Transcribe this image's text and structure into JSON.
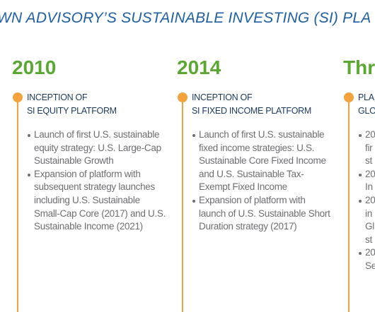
{
  "header": {
    "title": "WN ADVISORY’S SUSTAINABLE INVESTING (SI) PLA"
  },
  "columns": [
    {
      "year": "2010",
      "heading": [
        "INCEPTION OF",
        "SI EQUITY PLATFORM"
      ],
      "bullets": [
        [
          "Launch of first U.S. sustainable",
          "equity strategy: U.S. Large-Cap",
          "Sustainable Growth"
        ],
        [
          "Expansion of platform with",
          "subsequent strategy launches",
          "including U.S. Sustainable",
          "Small-Cap Core (2017) and U.S.",
          "Sustainable Income (2021)"
        ]
      ]
    },
    {
      "year": "2014",
      "heading": [
        "INCEPTION OF",
        "SI FIXED INCOME PLATFORM"
      ],
      "bullets": [
        [
          "Launch of first U.S. sustainable",
          "fixed income strategies: U.S.",
          "Sustainable Core Fixed Income",
          "and U.S. Sustainable Tax-",
          "Exempt Fixed Income"
        ],
        [
          "Expansion of platform with",
          "launch of U.S. Sustainable Short",
          "Duration strategy (2017)"
        ]
      ]
    },
    {
      "year": "Thr",
      "heading": [
        "PLA",
        "GLO"
      ],
      "bullets": [
        [
          "20",
          "fir",
          "st"
        ],
        [
          "20",
          "In"
        ],
        [
          "20",
          "in",
          "Gl",
          "st"
        ],
        [
          "20",
          "Se"
        ]
      ]
    }
  ]
}
